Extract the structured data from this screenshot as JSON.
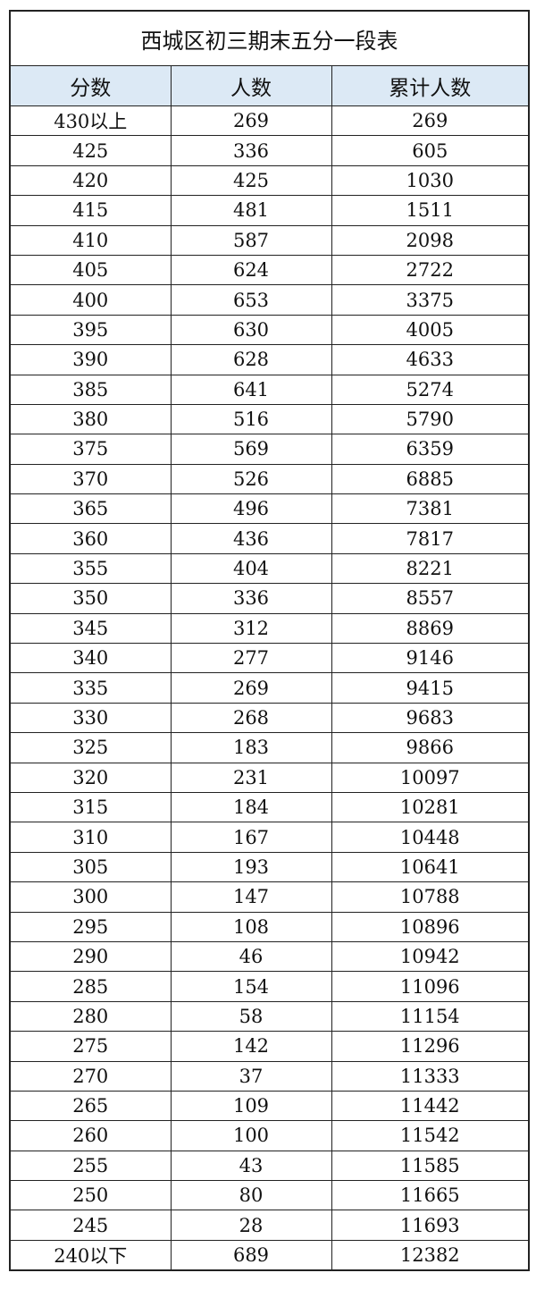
{
  "title": "西城区初三期末五分一段表",
  "columns": [
    "分数",
    "人数",
    "累计人数"
  ],
  "header_bg": "#dce9f5",
  "rows": [
    [
      "430以上",
      "269",
      "269"
    ],
    [
      "425",
      "336",
      "605"
    ],
    [
      "420",
      "425",
      "1030"
    ],
    [
      "415",
      "481",
      "1511"
    ],
    [
      "410",
      "587",
      "2098"
    ],
    [
      "405",
      "624",
      "2722"
    ],
    [
      "400",
      "653",
      "3375"
    ],
    [
      "395",
      "630",
      "4005"
    ],
    [
      "390",
      "628",
      "4633"
    ],
    [
      "385",
      "641",
      "5274"
    ],
    [
      "380",
      "516",
      "5790"
    ],
    [
      "375",
      "569",
      "6359"
    ],
    [
      "370",
      "526",
      "6885"
    ],
    [
      "365",
      "496",
      "7381"
    ],
    [
      "360",
      "436",
      "7817"
    ],
    [
      "355",
      "404",
      "8221"
    ],
    [
      "350",
      "336",
      "8557"
    ],
    [
      "345",
      "312",
      "8869"
    ],
    [
      "340",
      "277",
      "9146"
    ],
    [
      "335",
      "269",
      "9415"
    ],
    [
      "330",
      "268",
      "9683"
    ],
    [
      "325",
      "183",
      "9866"
    ],
    [
      "320",
      "231",
      "10097"
    ],
    [
      "315",
      "184",
      "10281"
    ],
    [
      "310",
      "167",
      "10448"
    ],
    [
      "305",
      "193",
      "10641"
    ],
    [
      "300",
      "147",
      "10788"
    ],
    [
      "295",
      "108",
      "10896"
    ],
    [
      "290",
      "46",
      "10942"
    ],
    [
      "285",
      "154",
      "11096"
    ],
    [
      "280",
      "58",
      "11154"
    ],
    [
      "275",
      "142",
      "11296"
    ],
    [
      "270",
      "37",
      "11333"
    ],
    [
      "265",
      "109",
      "11442"
    ],
    [
      "260",
      "100",
      "11542"
    ],
    [
      "255",
      "43",
      "11585"
    ],
    [
      "250",
      "80",
      "11665"
    ],
    [
      "245",
      "28",
      "11693"
    ],
    [
      "240以下",
      "689",
      "12382"
    ]
  ]
}
